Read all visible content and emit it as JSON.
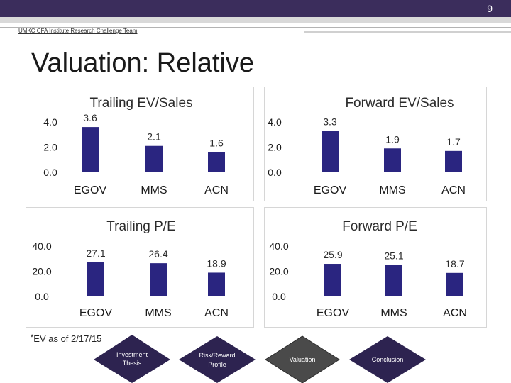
{
  "page_number": "9",
  "header": {
    "team": "UMKC CFA Institute Research Challenge Team"
  },
  "slide": {
    "title": "Valuation: Relative"
  },
  "footnote": {
    "star": "*",
    "text": "EV as of 2/17/15"
  },
  "colors": {
    "bar": "#2a2580",
    "header": "#3b2d5c",
    "nav_diamond": "#2d2350",
    "nav_active": "#4a4a4a"
  },
  "nav": {
    "items": [
      {
        "label": "Investment Thesis",
        "line1": "Investment",
        "line2": "Thesis"
      },
      {
        "label": "Risk/Reward Profile",
        "line1": "Risk/Reward",
        "line2": "Profile"
      },
      {
        "label": "Valuation",
        "line1": "Valuation",
        "line2": ""
      },
      {
        "label": "Conclusion",
        "line1": "Conclusion",
        "line2": ""
      }
    ]
  },
  "chart_data": [
    {
      "type": "bar",
      "title": "Trailing EV/Sales",
      "categories": [
        "EGOV",
        "MMS",
        "ACN"
      ],
      "values": [
        3.6,
        2.1,
        1.6
      ],
      "data_labels": [
        "3.6",
        "2.1",
        "1.6"
      ],
      "ylim": [
        0,
        4
      ],
      "yticks": [
        0,
        2,
        4
      ],
      "ytick_labels": [
        "0.0",
        "2.0",
        "4.0"
      ],
      "grid": false,
      "legend": "none"
    },
    {
      "type": "bar",
      "title": "Forward EV/Sales",
      "categories": [
        "EGOV",
        "MMS",
        "ACN"
      ],
      "values": [
        3.3,
        1.9,
        1.7
      ],
      "data_labels": [
        "3.3",
        "1.9",
        "1.7"
      ],
      "ylim": [
        0,
        4
      ],
      "yticks": [
        0,
        2,
        4
      ],
      "ytick_labels": [
        "0.0",
        "2.0",
        "4.0"
      ],
      "grid": false,
      "legend": "none"
    },
    {
      "type": "bar",
      "title": "Trailing P/E",
      "categories": [
        "EGOV",
        "MMS",
        "ACN"
      ],
      "values": [
        27.1,
        26.4,
        18.9
      ],
      "data_labels": [
        "27.1",
        "26.4",
        "18.9"
      ],
      "ylim": [
        0,
        40
      ],
      "yticks": [
        0,
        20,
        40
      ],
      "ytick_labels": [
        "0.0",
        "20.0",
        "40.0"
      ],
      "grid": false,
      "legend": "none"
    },
    {
      "type": "bar",
      "title": "Forward P/E",
      "categories": [
        "EGOV",
        "MMS",
        "ACN"
      ],
      "values": [
        25.9,
        25.1,
        18.7
      ],
      "data_labels": [
        "25.9",
        "25.1",
        "18.7"
      ],
      "ylim": [
        0,
        40
      ],
      "yticks": [
        0,
        20,
        40
      ],
      "ytick_labels": [
        "0.0",
        "20.0",
        "40.0"
      ],
      "grid": false,
      "legend": "none"
    }
  ]
}
